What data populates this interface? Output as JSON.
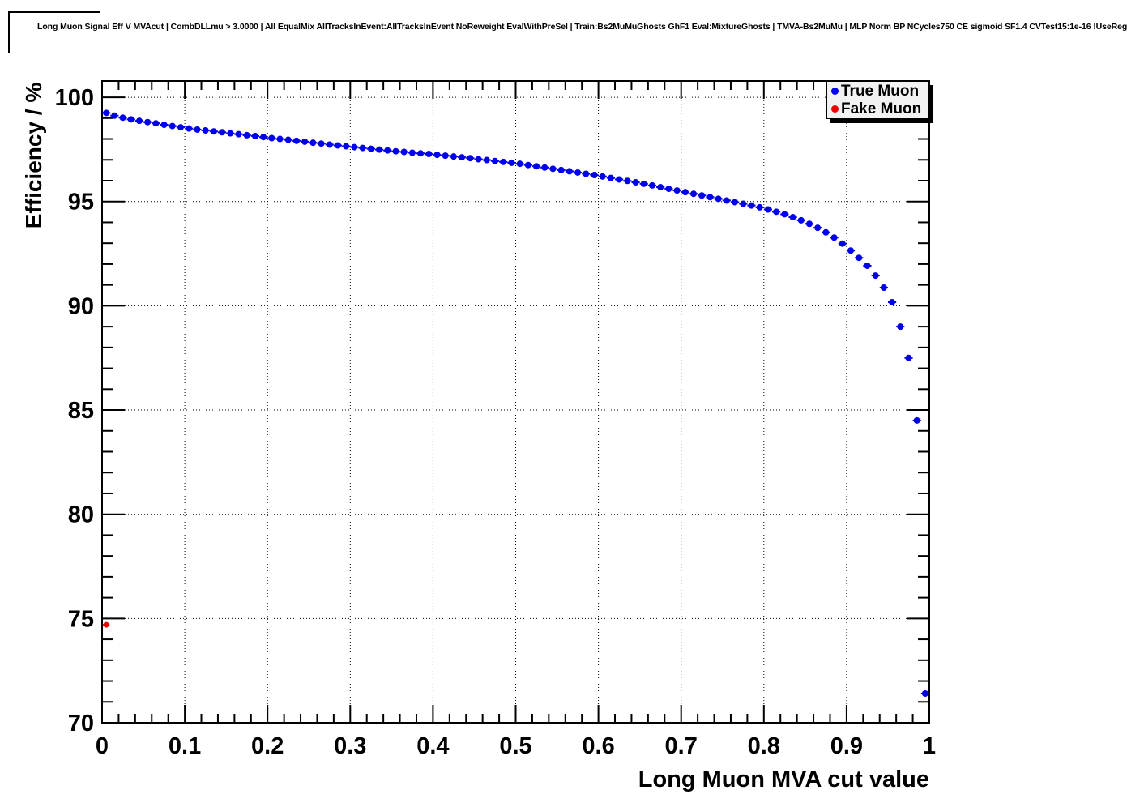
{
  "title": "Long Muon Signal Eff V MVAcut | CombDLLmu > 3.0000 | All EqualMix AllTracksInEvent:AllTracksInEvent NoReweight EvalWithPreSel | Train:Bs2MuMuGhosts GhF1 Eval:MixtureGhosts | TMVA-Bs2MuMu | MLP Norm BP NCycles750 CE sigmoid SF1.4 CVTest15:1e-16 !UseReg",
  "chart_data": {
    "type": "scatter",
    "title": "",
    "xlabel": "Long Muon MVA cut value",
    "ylabel": "Efficiency / %",
    "xlim": [
      0,
      1
    ],
    "ylim": [
      70,
      100.78
    ],
    "grid": "dotted",
    "legend_position": "top-right",
    "x_major_ticks": [
      0,
      0.1,
      0.2,
      0.3,
      0.4,
      0.5,
      0.6,
      0.7,
      0.8,
      0.9,
      1
    ],
    "x_tick_labels": [
      "0",
      "0.1",
      "0.2",
      "0.3",
      "0.4",
      "0.5",
      "0.6",
      "0.7",
      "0.8",
      "0.9",
      "1"
    ],
    "x_minor_step": 0.02,
    "y_major_ticks": [
      70,
      75,
      80,
      85,
      90,
      95,
      100
    ],
    "y_tick_labels": [
      "70",
      "75",
      "80",
      "85",
      "90",
      "95",
      "100"
    ],
    "y_minor_step": 1,
    "series": [
      {
        "name": "True Muon",
        "color": "#0000ee",
        "x_error_half_width": 0.005,
        "x": [
          0.005,
          0.015,
          0.025,
          0.035,
          0.045,
          0.055,
          0.065,
          0.075,
          0.085,
          0.095,
          0.105,
          0.115,
          0.125,
          0.135,
          0.145,
          0.155,
          0.165,
          0.175,
          0.185,
          0.195,
          0.205,
          0.215,
          0.225,
          0.235,
          0.245,
          0.255,
          0.265,
          0.275,
          0.285,
          0.295,
          0.305,
          0.315,
          0.325,
          0.335,
          0.345,
          0.355,
          0.365,
          0.375,
          0.385,
          0.395,
          0.405,
          0.415,
          0.425,
          0.435,
          0.445,
          0.455,
          0.465,
          0.475,
          0.485,
          0.495,
          0.505,
          0.515,
          0.525,
          0.535,
          0.545,
          0.555,
          0.565,
          0.575,
          0.585,
          0.595,
          0.605,
          0.615,
          0.625,
          0.635,
          0.645,
          0.655,
          0.665,
          0.675,
          0.685,
          0.695,
          0.705,
          0.715,
          0.725,
          0.735,
          0.745,
          0.755,
          0.765,
          0.775,
          0.785,
          0.795,
          0.805,
          0.815,
          0.825,
          0.835,
          0.845,
          0.855,
          0.865,
          0.875,
          0.885,
          0.895,
          0.905,
          0.915,
          0.925,
          0.935,
          0.945,
          0.955,
          0.965,
          0.975,
          0.985,
          0.995
        ],
        "y": [
          99.25,
          99.12,
          99.02,
          98.94,
          98.87,
          98.81,
          98.75,
          98.68,
          98.62,
          98.56,
          98.5,
          98.45,
          98.41,
          98.36,
          98.32,
          98.27,
          98.23,
          98.18,
          98.14,
          98.09,
          98.04,
          98.0,
          97.96,
          97.91,
          97.87,
          97.82,
          97.78,
          97.73,
          97.69,
          97.65,
          97.61,
          97.57,
          97.53,
          97.49,
          97.45,
          97.41,
          97.38,
          97.34,
          97.31,
          97.28,
          97.24,
          97.2,
          97.16,
          97.12,
          97.08,
          97.03,
          96.99,
          96.94,
          96.9,
          96.86,
          96.81,
          96.75,
          96.69,
          96.63,
          96.57,
          96.51,
          96.45,
          96.39,
          96.33,
          96.27,
          96.2,
          96.13,
          96.06,
          95.99,
          95.92,
          95.85,
          95.77,
          95.69,
          95.61,
          95.53,
          95.45,
          95.37,
          95.29,
          95.21,
          95.13,
          95.05,
          94.97,
          94.89,
          94.81,
          94.72,
          94.62,
          94.51,
          94.39,
          94.25,
          94.1,
          93.93,
          93.74,
          93.52,
          93.27,
          92.98,
          92.65,
          92.3,
          91.92,
          91.45,
          90.87,
          90.17,
          89.0,
          87.5,
          84.5,
          71.4
        ]
      },
      {
        "name": "Fake Muon",
        "color": "#ee0000",
        "x_error_half_width": 0.004,
        "x": [
          0.005
        ],
        "y": [
          74.7
        ]
      }
    ]
  },
  "legend": {
    "items": [
      {
        "label": "True Muon",
        "color": "#0000ee"
      },
      {
        "label": "Fake Muon",
        "color": "#ee0000"
      }
    ]
  }
}
